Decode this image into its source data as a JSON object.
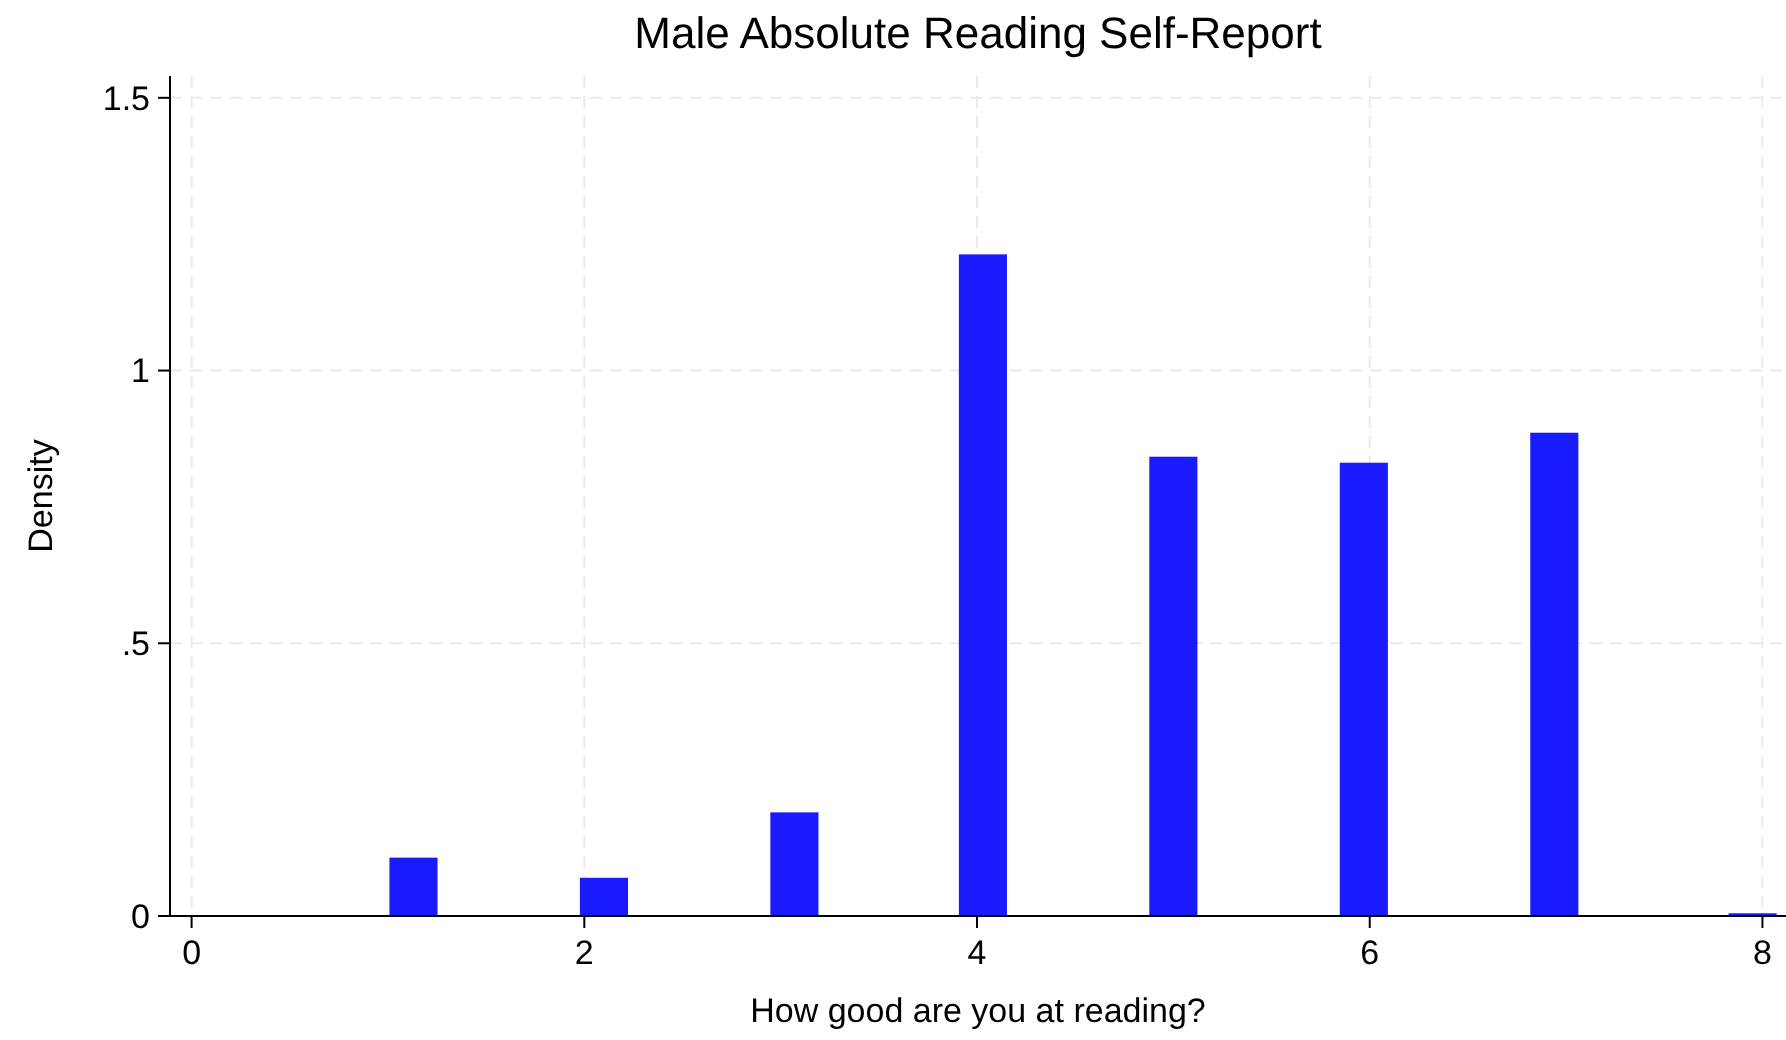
{
  "chart_data": {
    "type": "bar",
    "title": "Male Absolute Reading Self-Report",
    "xlabel": "How good are you at reading?",
    "ylabel": "Density",
    "x": [
      1.13,
      2.1,
      3.07,
      4.03,
      5.0,
      5.97,
      6.94,
      7.95
    ],
    "values": [
      0.107,
      0.07,
      0.19,
      1.213,
      0.842,
      0.831,
      0.886,
      0.005
    ],
    "color": "#1a1aff",
    "xlim": [
      -0.11,
      8.12
    ],
    "xticks": [
      0,
      2,
      4,
      6,
      8
    ],
    "ylim": [
      0,
      1.54
    ],
    "yticks": [
      0,
      {
        "value": 0.5,
        "label": ".5"
      },
      1,
      1.5
    ],
    "grid": true
  }
}
